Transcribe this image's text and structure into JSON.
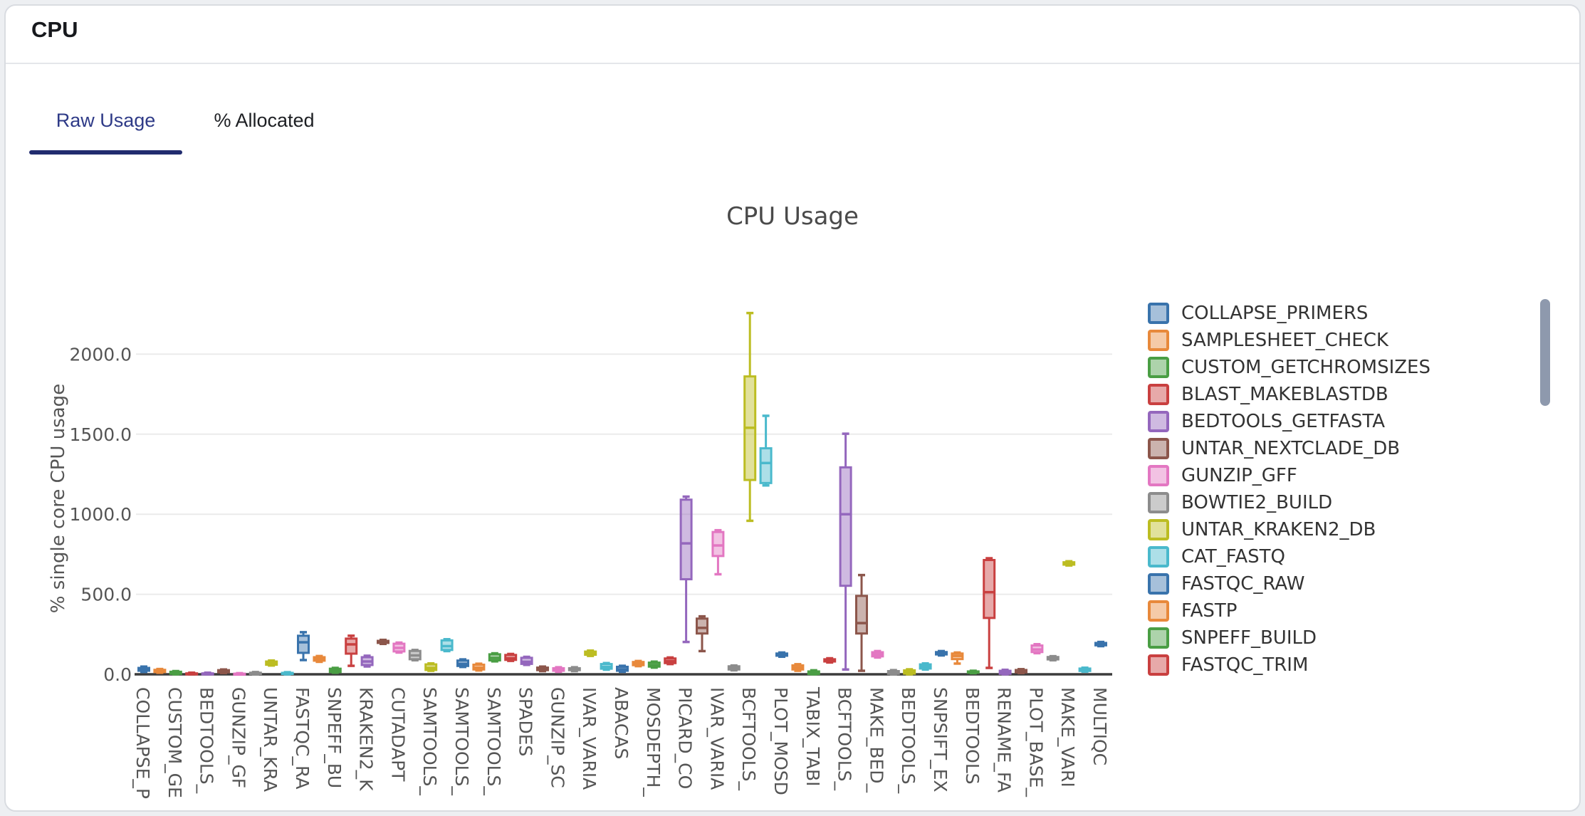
{
  "card": {
    "title": "CPU"
  },
  "tabs": [
    {
      "label": "Raw Usage",
      "active": true
    },
    {
      "label": "% Allocated",
      "active": false
    }
  ],
  "theme": {
    "active_tab_color": "#2e3a87",
    "tab_underline_color": "#212c6f",
    "axis_color": "#3b3b3b",
    "grid_color": "#ebebeb",
    "tick_text_color": "#555555",
    "title_color": "#4a4a4a",
    "legend_scrollbar_color": "#8e99ad"
  },
  "chart_data": {
    "type": "box",
    "title": "CPU Usage",
    "ylabel": "% single core CPU usage",
    "ylim": [
      0,
      2350
    ],
    "yticks": [
      0,
      500,
      1000,
      1500,
      2000
    ],
    "ytick_labels": [
      "0.0",
      "500.0",
      "1000.0",
      "1500.0",
      "2000.0"
    ],
    "grid": true,
    "x_label_note": "every second category label hidden for space",
    "palette": [
      "#3973ac",
      "#e8893b",
      "#4a9e44",
      "#c94040",
      "#9467bd",
      "#8c564b",
      "#e377c2",
      "#8c8c8c",
      "#bcbd22",
      "#4ab9cc"
    ],
    "legend_position": "right",
    "legend": [
      {
        "label": "COLLAPSE_PRIMERS",
        "color_index": 0
      },
      {
        "label": "SAMPLESHEET_CHECK",
        "color_index": 1
      },
      {
        "label": "CUSTOM_GETCHROMSIZES",
        "color_index": 2
      },
      {
        "label": "BLAST_MAKEBLASTDB",
        "color_index": 3
      },
      {
        "label": "BEDTOOLS_GETFASTA",
        "color_index": 4
      },
      {
        "label": "UNTAR_NEXTCLADE_DB",
        "color_index": 5
      },
      {
        "label": "GUNZIP_GFF",
        "color_index": 6
      },
      {
        "label": "BOWTIE2_BUILD",
        "color_index": 7
      },
      {
        "label": "UNTAR_KRAKEN2_DB",
        "color_index": 8
      },
      {
        "label": "CAT_FASTQ",
        "color_index": 9
      },
      {
        "label": "FASTQC_RAW",
        "color_index": 0
      },
      {
        "label": "FASTP",
        "color_index": 1
      },
      {
        "label": "SNPEFF_BUILD",
        "color_index": 2
      },
      {
        "label": "FASTQC_TRIM",
        "color_index": 3
      }
    ],
    "boxes": [
      {
        "label": "COLLAPSE_P",
        "color_index": 0,
        "stats": [
          15,
          22,
          30,
          40,
          48
        ]
      },
      {
        "label": "",
        "color_index": 1,
        "stats": [
          10,
          14,
          20,
          28,
          33
        ]
      },
      {
        "label": "CUSTOM_GE",
        "color_index": 2,
        "stats": [
          0,
          3,
          8,
          16,
          20
        ]
      },
      {
        "label": "",
        "color_index": 3,
        "stats": [
          0,
          1,
          3,
          6,
          10
        ]
      },
      {
        "label": "BEDTOOLS_",
        "color_index": 4,
        "stats": [
          0,
          1,
          3,
          6,
          10
        ]
      },
      {
        "label": "",
        "color_index": 5,
        "stats": [
          8,
          12,
          18,
          26,
          30
        ]
      },
      {
        "label": "GUNZIP_GF",
        "color_index": 6,
        "stats": [
          0,
          1,
          2,
          4,
          7
        ]
      },
      {
        "label": "",
        "color_index": 7,
        "stats": [
          0,
          2,
          5,
          10,
          14
        ]
      },
      {
        "label": "UNTAR_KRA",
        "color_index": 8,
        "stats": [
          55,
          60,
          69,
          80,
          86
        ]
      },
      {
        "label": "",
        "color_index": 9,
        "stats": [
          0,
          2,
          5,
          9,
          13
        ]
      },
      {
        "label": "FASTQC_RA",
        "color_index": 0,
        "stats": [
          89,
          134,
          200,
          241,
          263
        ]
      },
      {
        "label": "",
        "color_index": 1,
        "stats": [
          78,
          85,
          96,
          107,
          114
        ]
      },
      {
        "label": "SNPEFF_BU",
        "color_index": 2,
        "stats": [
          10,
          14,
          22,
          35,
          40
        ]
      },
      {
        "label": "",
        "color_index": 3,
        "stats": [
          53,
          129,
          187,
          223,
          241
        ]
      },
      {
        "label": "KRAKEN2_K",
        "color_index": 4,
        "stats": [
          49,
          58,
          80,
          107,
          116
        ]
      },
      {
        "label": "",
        "color_index": 5,
        "stats": [
          190,
          196,
          202,
          209,
          215
        ]
      },
      {
        "label": "CUTADAPT",
        "color_index": 6,
        "stats": [
          136,
          143,
          165,
          191,
          198
        ]
      },
      {
        "label": "",
        "color_index": 7,
        "stats": [
          88,
          94,
          118,
          146,
          152
        ]
      },
      {
        "label": "SAMTOOLS_",
        "color_index": 8,
        "stats": [
          22,
          27,
          40,
          62,
          68
        ]
      },
      {
        "label": "",
        "color_index": 9,
        "stats": [
          145,
          152,
          176,
          212,
          219
        ]
      },
      {
        "label": "SAMTOOLS_",
        "color_index": 0,
        "stats": [
          46,
          52,
          65,
          86,
          93
        ]
      },
      {
        "label": "",
        "color_index": 1,
        "stats": [
          24,
          30,
          41,
          60,
          66
        ]
      },
      {
        "label": "SAMTOOLS_",
        "color_index": 2,
        "stats": [
          81,
          87,
          102,
          125,
          131
        ]
      },
      {
        "label": "",
        "color_index": 3,
        "stats": [
          84,
          90,
          100,
          121,
          127
        ]
      },
      {
        "label": "SPADES",
        "color_index": 4,
        "stats": [
          59,
          65,
          78,
          103,
          109
        ]
      },
      {
        "label": "",
        "color_index": 5,
        "stats": [
          20,
          26,
          32,
          42,
          48
        ]
      },
      {
        "label": "GUNZIP_SC",
        "color_index": 6,
        "stats": [
          16,
          22,
          28,
          38,
          44
        ]
      },
      {
        "label": "",
        "color_index": 7,
        "stats": [
          20,
          26,
          31,
          38,
          44
        ]
      },
      {
        "label": "IVAR_VARIA",
        "color_index": 8,
        "stats": [
          115,
          122,
          131,
          142,
          148
        ]
      },
      {
        "label": "",
        "color_index": 9,
        "stats": [
          29,
          35,
          46,
          64,
          70
        ]
      },
      {
        "label": "ABACAS",
        "color_index": 0,
        "stats": [
          16,
          22,
          31,
          47,
          53
        ]
      },
      {
        "label": "",
        "color_index": 1,
        "stats": [
          51,
          57,
          65,
          77,
          83
        ]
      },
      {
        "label": "MOSDEPTH_",
        "color_index": 2,
        "stats": [
          42,
          48,
          58,
          73,
          79
        ]
      },
      {
        "label": "",
        "color_index": 3,
        "stats": [
          64,
          70,
          82,
          99,
          105
        ]
      },
      {
        "label": "PICARD_CO",
        "color_index": 4,
        "stats": [
          202,
          594,
          818,
          1091,
          1110
        ]
      },
      {
        "label": "",
        "color_index": 5,
        "stats": [
          145,
          255,
          290,
          348,
          362
        ]
      },
      {
        "label": "IVAR_VARIA",
        "color_index": 6,
        "stats": [
          625,
          739,
          805,
          889,
          900
        ]
      },
      {
        "label": "",
        "color_index": 7,
        "stats": [
          25,
          30,
          38,
          50,
          55
        ]
      },
      {
        "label": "BCFTOOLS_",
        "color_index": 8,
        "stats": [
          959,
          1214,
          1540,
          1861,
          2257
        ]
      },
      {
        "label": "",
        "color_index": 9,
        "stats": [
          1180,
          1195,
          1320,
          1412,
          1615
        ]
      },
      {
        "label": "PLOT_MOSD",
        "color_index": 0,
        "stats": [
          110,
          116,
          123,
          130,
          136
        ]
      },
      {
        "label": "",
        "color_index": 1,
        "stats": [
          22,
          30,
          42,
          56,
          63
        ]
      },
      {
        "label": "TABIX_TABI",
        "color_index": 2,
        "stats": [
          0,
          2,
          8,
          18,
          25
        ]
      },
      {
        "label": "",
        "color_index": 3,
        "stats": [
          74,
          80,
          87,
          94,
          100
        ]
      },
      {
        "label": "BCFTOOLS_",
        "color_index": 4,
        "stats": [
          30,
          553,
          1000,
          1293,
          1503
        ]
      },
      {
        "label": "",
        "color_index": 5,
        "stats": [
          22,
          255,
          320,
          490,
          620
        ]
      },
      {
        "label": "MAKE_BED_",
        "color_index": 6,
        "stats": [
          105,
          112,
          124,
          138,
          145
        ]
      },
      {
        "label": "",
        "color_index": 7,
        "stats": [
          0,
          3,
          10,
          20,
          26
        ]
      },
      {
        "label": "BEDTOOLS_",
        "color_index": 8,
        "stats": [
          0,
          4,
          12,
          25,
          31
        ]
      },
      {
        "label": "",
        "color_index": 9,
        "stats": [
          30,
          36,
          48,
          62,
          68
        ]
      },
      {
        "label": "SNPSIFT_EX",
        "color_index": 0,
        "stats": [
          118,
          124,
          131,
          139,
          145
        ]
      },
      {
        "label": "",
        "color_index": 1,
        "stats": [
          67,
          95,
          115,
          130,
          136
        ]
      },
      {
        "label": "BEDTOOLS",
        "color_index": 2,
        "stats": [
          7,
          10,
          14,
          18,
          22
        ]
      },
      {
        "label": "",
        "color_index": 3,
        "stats": [
          40,
          352,
          513,
          714,
          725
        ]
      },
      {
        "label": "RENAME_FA",
        "color_index": 4,
        "stats": [
          0,
          3,
          11,
          22,
          28
        ]
      },
      {
        "label": "",
        "color_index": 5,
        "stats": [
          8,
          12,
          19,
          27,
          32
        ]
      },
      {
        "label": "PLOT_BASE_",
        "color_index": 6,
        "stats": [
          132,
          139,
          155,
          180,
          188
        ]
      },
      {
        "label": "",
        "color_index": 7,
        "stats": [
          88,
          93,
          100,
          108,
          113
        ]
      },
      {
        "label": "MAKE_VARI",
        "color_index": 8,
        "stats": [
          680,
          685,
          693,
          700,
          706
        ]
      },
      {
        "label": "",
        "color_index": 9,
        "stats": [
          17,
          21,
          28,
          36,
          41
        ]
      },
      {
        "label": "MULTIQC",
        "color_index": 0,
        "stats": [
          176,
          181,
          188,
          196,
          202
        ]
      }
    ]
  }
}
